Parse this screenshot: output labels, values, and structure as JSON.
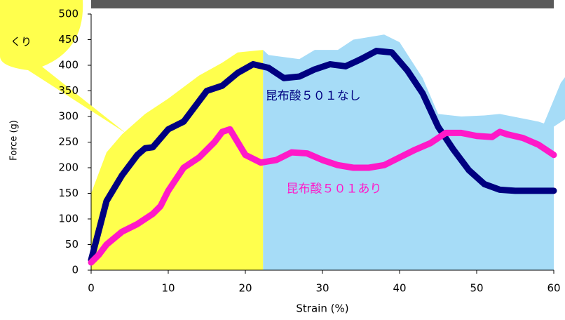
{
  "chart_data": {
    "type": "line",
    "xlabel": "Strain (%)",
    "ylabel": "Force (g)",
    "callout_text": "くり",
    "xlim": [
      0,
      60
    ],
    "xticks": [
      0,
      10,
      20,
      30,
      40,
      50,
      60
    ],
    "ylim": [
      0,
      500
    ],
    "yticks": [
      0,
      50,
      100,
      150,
      200,
      250,
      300,
      350,
      400,
      450,
      500
    ],
    "areas": [
      {
        "color": "#ffff4d",
        "x": [
          0,
          2,
          4,
          7,
          10,
          14,
          17,
          19,
          22.3
        ],
        "values": [
          150,
          230,
          265,
          305,
          335,
          380,
          405,
          425,
          430
        ]
      },
      {
        "color": "#a6dcf7",
        "x": [
          22.3,
          23,
          27,
          29,
          32,
          34,
          38,
          40,
          43,
          45,
          48,
          51,
          53,
          58,
          60
        ],
        "values": [
          430,
          420,
          412,
          430,
          430,
          450,
          460,
          445,
          375,
          305,
          300,
          302,
          305,
          290,
          280
        ]
      }
    ],
    "series": [
      {
        "name": "昆布酸５０１なし",
        "color": "#000080",
        "x": [
          0,
          2,
          4,
          6,
          7,
          8,
          10,
          12,
          14,
          15,
          17,
          19,
          21,
          23,
          25,
          27,
          29,
          31,
          33,
          35,
          37,
          39,
          41,
          43,
          45,
          47,
          49,
          51,
          53,
          55,
          57,
          60
        ],
        "values": [
          20,
          135,
          185,
          225,
          238,
          240,
          275,
          290,
          330,
          350,
          360,
          385,
          402,
          395,
          375,
          378,
          392,
          402,
          398,
          412,
          428,
          425,
          390,
          345,
          280,
          235,
          195,
          168,
          157,
          155,
          155,
          155
        ]
      },
      {
        "name": "昆布酸５０１あり",
        "color": "#ff19c8",
        "x": [
          0,
          1,
          2,
          4,
          6,
          8,
          9,
          10,
          12,
          14,
          16,
          17,
          18,
          19,
          20,
          22,
          24,
          26,
          28,
          30,
          32,
          34,
          36,
          38,
          40,
          42,
          44,
          46,
          48,
          50,
          52,
          53,
          54,
          56,
          58,
          60
        ],
        "values": [
          15,
          30,
          50,
          75,
          90,
          110,
          125,
          155,
          200,
          220,
          250,
          270,
          275,
          250,
          225,
          210,
          215,
          230,
          228,
          215,
          205,
          200,
          200,
          205,
          220,
          235,
          248,
          268,
          268,
          262,
          260,
          270,
          265,
          258,
          245,
          225
        ]
      }
    ]
  }
}
